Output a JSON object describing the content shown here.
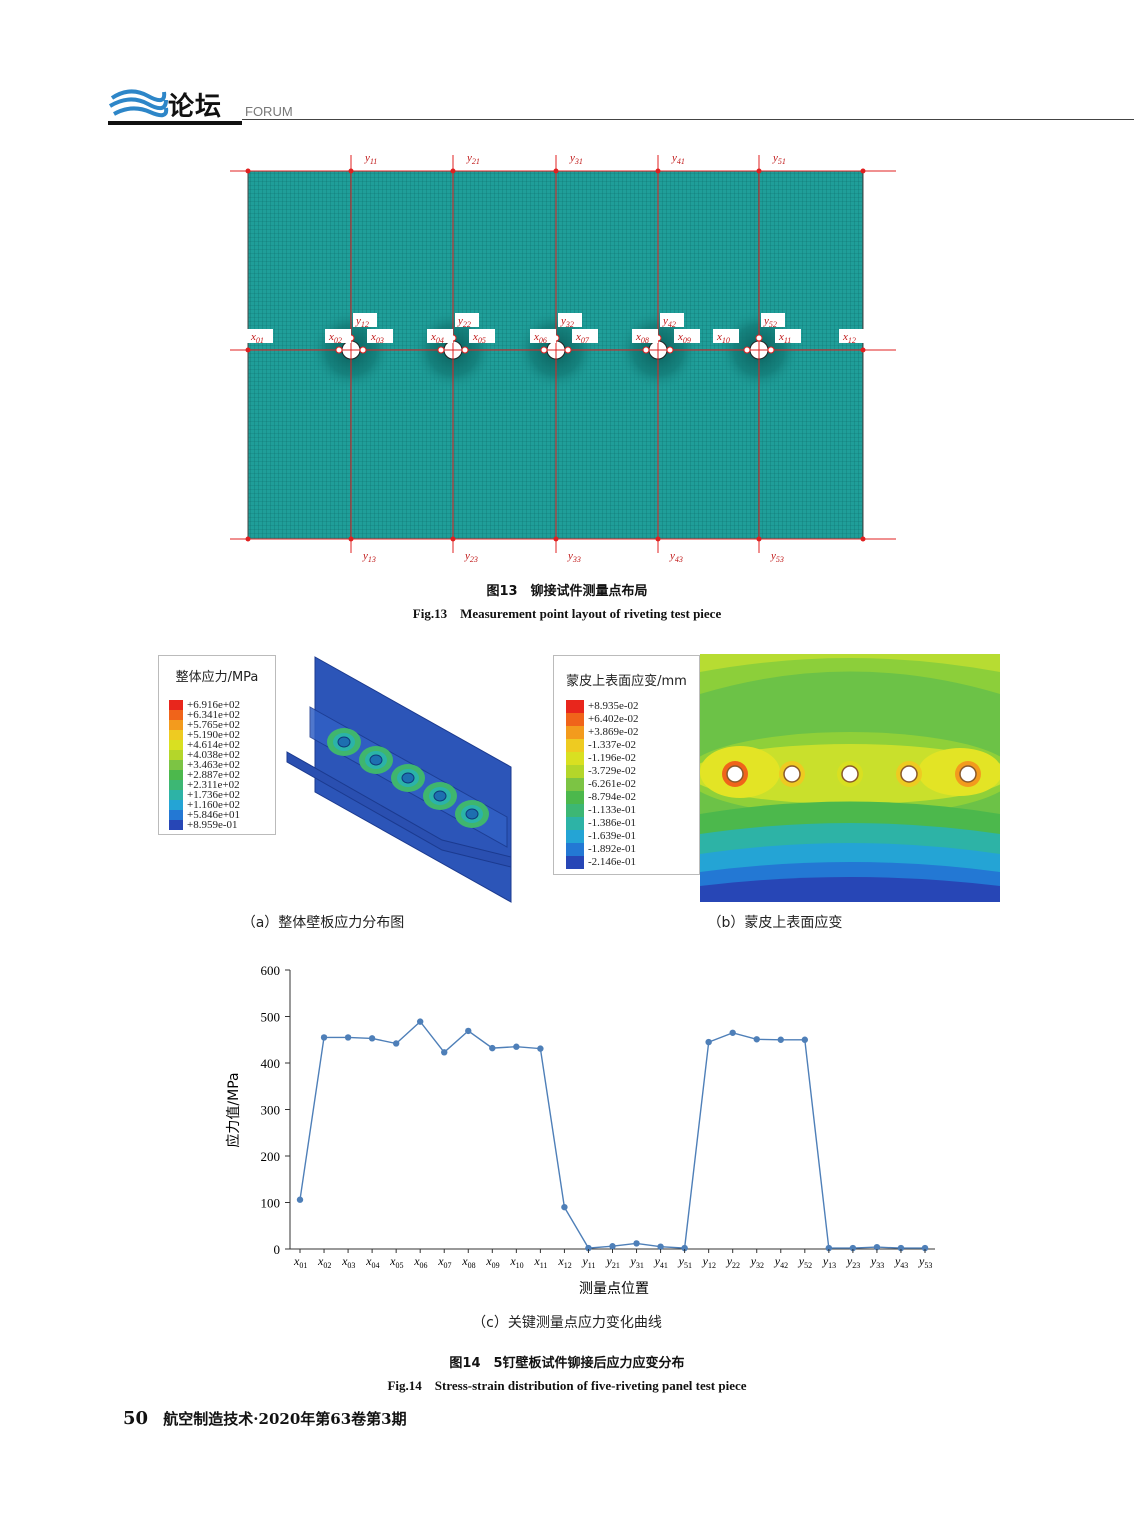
{
  "header": {
    "section_title": "论坛",
    "section_title_en": "FORUM"
  },
  "fig13": {
    "caption_cn": "图13　铆接试件测量点布局",
    "caption_en": "Fig.13　Measurement point layout of riveting test piece",
    "top_labels": [
      "y11",
      "y21",
      "y31",
      "y41",
      "y51"
    ],
    "bottom_labels": [
      "y13",
      "y23",
      "y33",
      "y43",
      "y53"
    ],
    "mid_labels": [
      "y12",
      "y22",
      "y32",
      "y42",
      "y52"
    ],
    "x_labels": [
      "x01",
      "x02",
      "x03",
      "x04",
      "x05",
      "x06",
      "x07",
      "x08",
      "x09",
      "x10",
      "x11",
      "x12"
    ],
    "colors": {
      "mesh": "#1f9e99",
      "lines": "#e02020"
    }
  },
  "fig14a": {
    "legend_title": "整体应力/MPa",
    "legend_values": [
      "+6.916e+02",
      "+6.341e+02",
      "+5.765e+02",
      "+5.190e+02",
      "+4.614e+02",
      "+4.038e+02",
      "+3.463e+02",
      "+2.887e+02",
      "+2.311e+02",
      "+1.736e+02",
      "+1.160e+02",
      "+5.846e+01",
      "+8.959e-01"
    ],
    "legend_colors": [
      "#e8261c",
      "#f0641a",
      "#f39b1d",
      "#eecb21",
      "#d9e021",
      "#b4d62a",
      "#7cc444",
      "#4cb84c",
      "#3db774",
      "#2db3a6",
      "#24a4d5",
      "#2378d4",
      "#2746b6"
    ],
    "caption": "（a）整体壁板应力分布图"
  },
  "fig14b": {
    "legend_title": "蒙皮上表面应变/mm",
    "legend_values": [
      "+8.935e-02",
      "+6.402e-02",
      "+3.869e-02",
      "-1.337e-02",
      "-1.196e-02",
      "-3.729e-02",
      "-6.261e-02",
      "-8.794e-02",
      "-1.133e-01",
      "-1.386e-01",
      "-1.639e-01",
      "-1.892e-01",
      "-2.146e-01"
    ],
    "legend_colors": [
      "#e8261c",
      "#f0641a",
      "#f39b1d",
      "#eecb21",
      "#d9e021",
      "#b4d62a",
      "#7cc444",
      "#4cb84c",
      "#3db774",
      "#2db3a6",
      "#24a4d5",
      "#2378d4",
      "#2746b6"
    ],
    "caption": "（b）蒙皮上表面应变"
  },
  "chart_data": {
    "type": "line",
    "xlabel": "测量点位置",
    "ylabel": "应力值/MPa",
    "ylim": [
      0,
      600
    ],
    "yticks": [
      0,
      100,
      200,
      300,
      400,
      500,
      600
    ],
    "categories": [
      {
        "v": "x",
        "s": "01"
      },
      {
        "v": "x",
        "s": "02"
      },
      {
        "v": "x",
        "s": "03"
      },
      {
        "v": "x",
        "s": "04"
      },
      {
        "v": "x",
        "s": "05"
      },
      {
        "v": "x",
        "s": "06"
      },
      {
        "v": "x",
        "s": "07"
      },
      {
        "v": "x",
        "s": "08"
      },
      {
        "v": "x",
        "s": "09"
      },
      {
        "v": "x",
        "s": "10"
      },
      {
        "v": "x",
        "s": "11"
      },
      {
        "v": "x",
        "s": "12"
      },
      {
        "v": "y",
        "s": "11"
      },
      {
        "v": "y",
        "s": "21"
      },
      {
        "v": "y",
        "s": "31"
      },
      {
        "v": "y",
        "s": "41"
      },
      {
        "v": "y",
        "s": "51"
      },
      {
        "v": "y",
        "s": "12"
      },
      {
        "v": "y",
        "s": "22"
      },
      {
        "v": "y",
        "s": "32"
      },
      {
        "v": "y",
        "s": "42"
      },
      {
        "v": "y",
        "s": "52"
      },
      {
        "v": "y",
        "s": "13"
      },
      {
        "v": "y",
        "s": "23"
      },
      {
        "v": "y",
        "s": "33"
      },
      {
        "v": "y",
        "s": "43"
      },
      {
        "v": "y",
        "s": "53"
      }
    ],
    "values": [
      106,
      455,
      455,
      453,
      442,
      489,
      423,
      469,
      432,
      435,
      431,
      90,
      2,
      6,
      12,
      5,
      2,
      445,
      465,
      451,
      450,
      450,
      2,
      2,
      4,
      2,
      2
    ],
    "color": "#4e7fb8",
    "caption": "（c）关键测量点应力变化曲线"
  },
  "fig14": {
    "caption_cn": "图14　5钉壁板试件铆接后应力应变分布",
    "caption_en": "Fig.14　Stress-strain distribution of five-riveting panel test piece"
  },
  "footer": {
    "page_number": "50",
    "journal": "航空制造技术·2020年第63卷第3期"
  }
}
